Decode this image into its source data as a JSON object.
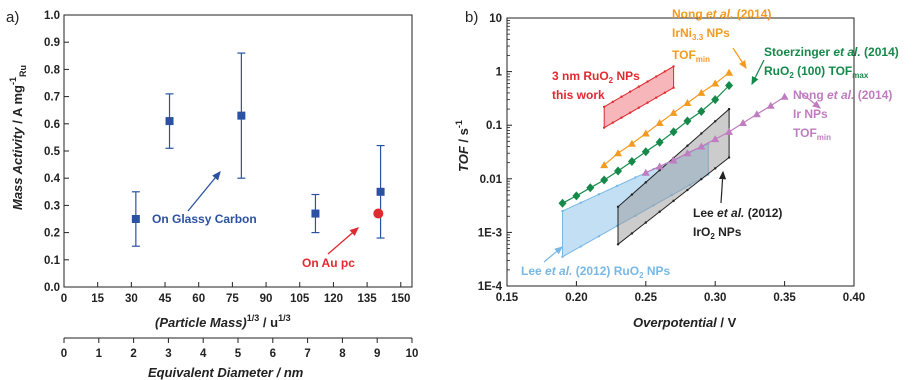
{
  "colors": {
    "blue": "#2b52a2",
    "red": "#e02a30",
    "orange": "#f39a21",
    "green": "#14894a",
    "magenta": "#c07cc0",
    "black": "#222222",
    "lightblue": "#78b8e6",
    "pink": "#f07a80",
    "gray": "#9a9a9a"
  },
  "chart_data": [
    {
      "type": "scatter",
      "panel_label": "a)",
      "ylabel_main": "Mass Activity",
      "ylabel_unit": " / A mg",
      "ylabel_sup": "-1",
      "ylabel_sub": "Ru",
      "xlabel_main": "(Particle Mass)",
      "xlabel_sup": "1/3",
      "xlabel_unit": " / u",
      "xlabel_unit_sup": "1/3",
      "xlim": [
        0,
        155
      ],
      "ylim": [
        0,
        1.0
      ],
      "xticks": [
        "0",
        "15",
        "30",
        "45",
        "60",
        "75",
        "90",
        "105",
        "120",
        "135",
        "150"
      ],
      "yticks": [
        "0.0",
        "0.1",
        "0.2",
        "0.3",
        "0.4",
        "0.5",
        "0.6",
        "0.7",
        "0.8",
        "0.9",
        "1.0"
      ],
      "secondary_xaxis": {
        "label": "Equivalent Diameter / nm",
        "range": [
          0,
          10
        ],
        "ticks": [
          "0",
          "1",
          "2",
          "3",
          "4",
          "5",
          "6",
          "7",
          "8",
          "9",
          "10"
        ]
      },
      "series": [
        {
          "name": "On Glassy Carbon",
          "points": [
            {
              "x": 32,
              "y": 0.25,
              "ylow": 0.15,
              "yhigh": 0.35
            },
            {
              "x": 47,
              "y": 0.61,
              "ylow": 0.51,
              "yhigh": 0.71
            },
            {
              "x": 79,
              "y": 0.63,
              "ylow": 0.4,
              "yhigh": 0.86
            },
            {
              "x": 112,
              "y": 0.27,
              "ylow": 0.2,
              "yhigh": 0.34
            },
            {
              "x": 141,
              "y": 0.35,
              "ylow": 0.18,
              "yhigh": 0.52
            }
          ]
        },
        {
          "name": "On Au pc",
          "points": [
            {
              "x": 140,
              "y": 0.27
            }
          ]
        }
      ],
      "annotations": {
        "glassy": "On Glassy Carbon",
        "au": "On Au pc"
      }
    },
    {
      "type": "line",
      "panel_label": "b)",
      "ylabel_main": "TOF",
      "ylabel_unit": " / s",
      "ylabel_sup": "-1",
      "xlabel_main": "Overpotential",
      "xlabel_unit": " / V",
      "yscale": "log",
      "xlim": [
        0.15,
        0.4
      ],
      "ylim": [
        0.0001,
        10
      ],
      "xticks": [
        "0.15",
        "0.20",
        "0.25",
        "0.30",
        "0.35",
        "0.40"
      ],
      "yticks": [
        "1E-4",
        "1E-3",
        "0.01",
        "0.1",
        "1",
        "10"
      ],
      "bands": [
        {
          "name": "3 nm RuO2 NPs this work",
          "lower": [
            [
              0.22,
              0.09
            ],
            [
              0.27,
              0.5
            ]
          ],
          "upper": [
            [
              0.22,
              0.22
            ],
            [
              0.27,
              1.25
            ]
          ]
        },
        {
          "name": "Lee et al. (2012) RuO2 NPs",
          "lower": [
            [
              0.19,
              0.00035
            ],
            [
              0.295,
              0.012
            ]
          ],
          "upper": [
            [
              0.19,
              0.0025
            ],
            [
              0.295,
              0.045
            ]
          ]
        },
        {
          "name": "Lee et al. (2012) IrO2 NPs",
          "lower": [
            [
              0.23,
              0.0006
            ],
            [
              0.31,
              0.025
            ]
          ],
          "upper": [
            [
              0.23,
              0.003
            ],
            [
              0.31,
              0.2
            ]
          ]
        }
      ],
      "series": [
        {
          "name": "Nong et al. (2014) IrNi3.3 NPs TOFmin",
          "marker": "triangle",
          "x": [
            0.22,
            0.23,
            0.24,
            0.25,
            0.26,
            0.27,
            0.28,
            0.29,
            0.3,
            0.31
          ],
          "y": [
            0.018,
            0.03,
            0.045,
            0.07,
            0.11,
            0.17,
            0.26,
            0.4,
            0.6,
            0.95
          ]
        },
        {
          "name": "Stoerzinger et al. (2014) RuO2 (100) TOFmax",
          "marker": "diamond",
          "x": [
            0.19,
            0.2,
            0.21,
            0.22,
            0.23,
            0.24,
            0.25,
            0.26,
            0.27,
            0.28,
            0.29,
            0.3,
            0.31
          ],
          "y": [
            0.0035,
            0.0048,
            0.0068,
            0.0095,
            0.014,
            0.021,
            0.032,
            0.048,
            0.075,
            0.12,
            0.18,
            0.3,
            0.55
          ]
        },
        {
          "name": "Nong et al. (2014) Ir NPs TOFmin",
          "marker": "triangle",
          "x": [
            0.25,
            0.26,
            0.27,
            0.28,
            0.29,
            0.3,
            0.31,
            0.32,
            0.33,
            0.34,
            0.35
          ],
          "y": [
            0.013,
            0.017,
            0.022,
            0.03,
            0.04,
            0.055,
            0.075,
            0.11,
            0.16,
            0.23,
            0.34
          ]
        }
      ],
      "annotations": {
        "ru_this_l1": "3 nm RuO",
        "ru_this_sub": "2",
        "ru_this_l1_end": " NPs",
        "ru_this_l2": "this work",
        "nong_l1_a": "Nong ",
        "nong_l1_b": "et al.",
        "nong_l1_c": " (2014)",
        "nong_l2_a": "IrNi",
        "nong_l2_sub": "3.3",
        "nong_l2_b": " NPs",
        "nong_l3": "TOF",
        "nong_l3_sub": "min",
        "st_l1_a": "Stoerzinger ",
        "st_l1_b": "et al.",
        "st_l1_c": " (2014)",
        "st_l2_a": "RuO",
        "st_l2_sub": "2",
        "st_l2_b": " (100) TOF",
        "st_l2_sub2": "max",
        "ir_l1_a": "Nong ",
        "ir_l1_b": "et al.",
        "ir_l1_c": " (2014)",
        "ir_l2": "Ir NPs",
        "ir_l3": "TOF",
        "ir_l3_sub": "min",
        "lee_ir_l1_a": "Lee ",
        "lee_ir_l1_b": "et al.",
        "lee_ir_l1_c": " (2012)",
        "lee_ir_l2_a": "IrO",
        "lee_ir_l2_sub": "2",
        "lee_ir_l2_b": " NPs",
        "lee_ru_a": "Lee ",
        "lee_ru_b": "et al.",
        "lee_ru_c": " (2012) RuO",
        "lee_ru_sub": "2",
        "lee_ru_d": " NPs"
      }
    }
  ]
}
